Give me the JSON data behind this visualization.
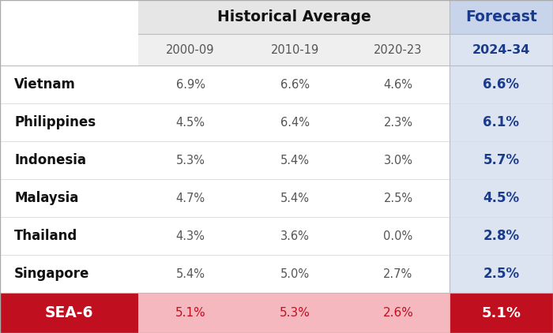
{
  "countries": [
    "Vietnam",
    "Philippines",
    "Indonesia",
    "Malaysia",
    "Thailand",
    "Singapore"
  ],
  "col_headers": [
    "2000-09",
    "2010-19",
    "2020-23",
    "2024-34"
  ],
  "values": [
    [
      "6.9%",
      "6.6%",
      "4.6%",
      "6.6%"
    ],
    [
      "4.5%",
      "6.4%",
      "2.3%",
      "6.1%"
    ],
    [
      "5.3%",
      "5.4%",
      "3.0%",
      "5.7%"
    ],
    [
      "4.7%",
      "5.4%",
      "2.5%",
      "4.5%"
    ],
    [
      "4.3%",
      "3.6%",
      "0.0%",
      "2.8%"
    ],
    [
      "5.4%",
      "5.0%",
      "2.7%",
      "2.5%"
    ]
  ],
  "sea6_values": [
    "5.1%",
    "5.3%",
    "2.6%",
    "5.1%"
  ],
  "header_group1": "Historical Average",
  "header_group2": "Forecast",
  "bg_white": "#ffffff",
  "bg_header_hist": "#e6e6e6",
  "bg_header_fore": "#c8d4ea",
  "bg_subheader_hist": "#efefef",
  "bg_subheader_fore": "#dce4f2",
  "bg_forecast_col": "#dce4f2",
  "bg_sea6_pink": "#f5b8be",
  "bg_sea6_red": "#c01020",
  "color_forecast_blue": "#1a3a8c",
  "color_sea6_red_text": "#c01020",
  "color_body_gray": "#555555",
  "color_country_black": "#111111",
  "color_white": "#ffffff",
  "color_divider": "#cccccc"
}
